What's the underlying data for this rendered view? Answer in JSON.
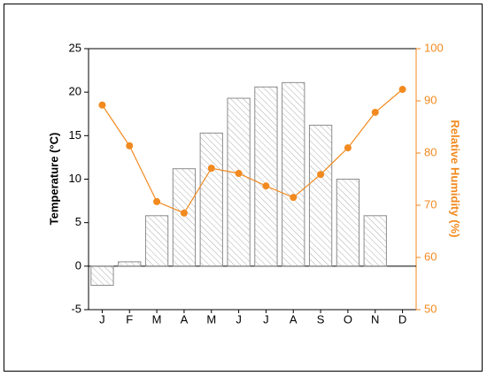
{
  "chart_data": {
    "type": "combo",
    "categories": [
      "J",
      "F",
      "M",
      "A",
      "M",
      "J",
      "J",
      "A",
      "S",
      "O",
      "N",
      "D"
    ],
    "y_label": "Temperature (°C)",
    "y2_label": "Relative Humidity (%)",
    "series": [
      {
        "type": "bar",
        "color": "#8c8c8c",
        "values": [
          -2.2,
          0.5,
          5.8,
          11.2,
          15.3,
          19.3,
          20.6,
          21.1,
          16.2,
          10.0,
          5.8,
          null
        ]
      },
      {
        "type": "line",
        "axis": "y2",
        "color": "#f28a1f",
        "values": [
          89.2,
          81.4,
          70.7,
          68.5,
          77.1,
          76.1,
          73.7,
          71.5,
          75.9,
          81.0,
          87.8,
          92.2
        ]
      }
    ],
    "ylim": [
      -5,
      25
    ],
    "yticks": [
      -5,
      0,
      5,
      10,
      15,
      20,
      25
    ],
    "y2lim": [
      50,
      100
    ],
    "y2ticks": [
      50,
      60,
      70,
      80,
      90,
      100
    ]
  }
}
